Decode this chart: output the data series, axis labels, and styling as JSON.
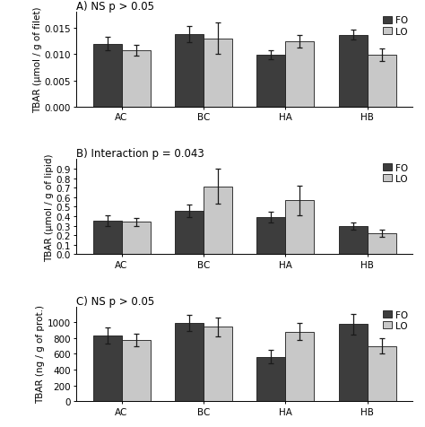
{
  "categories": [
    "AC",
    "BC",
    "HA",
    "HB"
  ],
  "panel_A": {
    "title": "A) NS p > 0.05",
    "ylabel": "TBAR (μmol / g of filet)",
    "ylim": [
      0,
      0.018
    ],
    "yticks": [
      0.0,
      0.005,
      0.01,
      0.015
    ],
    "ytick_labels": [
      "0.000",
      "0.005",
      "0.010",
      "0.015"
    ],
    "FO_values": [
      0.012,
      0.0138,
      0.0099,
      0.0137
    ],
    "LO_values": [
      0.0108,
      0.013,
      0.0124,
      0.0099
    ],
    "FO_errors": [
      0.0013,
      0.0015,
      0.0008,
      0.001
    ],
    "LO_errors": [
      0.001,
      0.003,
      0.0012,
      0.0012
    ]
  },
  "panel_B": {
    "title": "B) Interaction p = 0.043",
    "ylabel": "TBAR (μmol / g of lipid)",
    "ylim": [
      0.0,
      1.0
    ],
    "yticks": [
      0.0,
      0.1,
      0.2,
      0.3,
      0.4,
      0.5,
      0.6,
      0.7,
      0.8,
      0.9
    ],
    "ytick_labels": [
      "0.0",
      "0.1",
      "0.2",
      "0.3",
      "0.4",
      "0.5",
      "0.6",
      "0.7",
      "0.8",
      "0.9"
    ],
    "FO_values": [
      0.355,
      0.455,
      0.39,
      0.295
    ],
    "LO_values": [
      0.34,
      0.715,
      0.565,
      0.22
    ],
    "FO_errors": [
      0.055,
      0.065,
      0.055,
      0.04
    ],
    "LO_errors": [
      0.045,
      0.185,
      0.155,
      0.04
    ]
  },
  "panel_C": {
    "title": "C) NS p > 0.05",
    "ylabel": "TBAR (ng / g of prot.)",
    "ylim": [
      0,
      1200
    ],
    "yticks": [
      0,
      200,
      400,
      600,
      800,
      1000
    ],
    "ytick_labels": [
      "0",
      "200",
      "400",
      "600",
      "800",
      "1000"
    ],
    "FO_values": [
      835,
      990,
      565,
      975
    ],
    "LO_values": [
      780,
      940,
      880,
      700
    ],
    "FO_errors": [
      100,
      100,
      90,
      130
    ],
    "LO_errors": [
      80,
      115,
      110,
      100
    ]
  },
  "FO_color": "#3d3d3d",
  "LO_color": "#c8c8c8",
  "bar_width": 0.35,
  "edgecolor": "#1a1a1a",
  "capsize": 2,
  "elinewidth": 0.9,
  "ecolor": "#1a1a1a",
  "legend_FO": "FO",
  "legend_LO": "LO",
  "bg_color": "#ffffff",
  "fontsize_title": 8.5,
  "fontsize_label": 7.5,
  "fontsize_tick": 7.5,
  "fontsize_legend": 7.5
}
